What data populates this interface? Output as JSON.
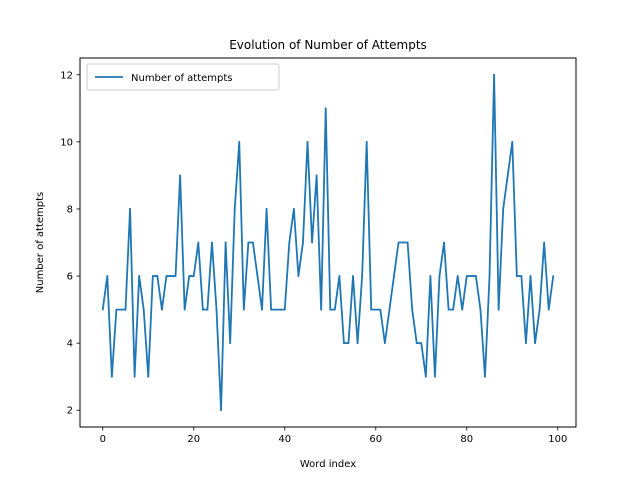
{
  "chart_data": {
    "type": "line",
    "title": "Evolution of Number of Attempts",
    "xlabel": "Word index",
    "ylabel": "Number of attempts",
    "xlim": [
      -5,
      104
    ],
    "ylim": [
      1.5,
      12.5
    ],
    "xticks": [
      0,
      20,
      40,
      60,
      80,
      100
    ],
    "yticks": [
      2,
      4,
      6,
      8,
      10,
      12
    ],
    "grid": false,
    "legend": "top-left",
    "series": [
      {
        "name": "Number of attempts",
        "color": "#1f77b4",
        "x": [
          0,
          1,
          2,
          3,
          4,
          5,
          6,
          7,
          8,
          9,
          10,
          11,
          12,
          13,
          14,
          15,
          16,
          17,
          18,
          19,
          20,
          21,
          22,
          23,
          24,
          25,
          26,
          27,
          28,
          29,
          30,
          31,
          32,
          33,
          34,
          35,
          36,
          37,
          38,
          39,
          40,
          41,
          42,
          43,
          44,
          45,
          46,
          47,
          48,
          49,
          50,
          51,
          52,
          53,
          54,
          55,
          56,
          57,
          58,
          59,
          60,
          61,
          62,
          63,
          64,
          65,
          66,
          67,
          68,
          69,
          70,
          71,
          72,
          73,
          74,
          75,
          76,
          77,
          78,
          79,
          80,
          81,
          82,
          83,
          84,
          85,
          86,
          87,
          88,
          89,
          90,
          91,
          92,
          93,
          94,
          95,
          96,
          97,
          98,
          99
        ],
        "values": [
          5,
          6,
          3,
          5,
          5,
          5,
          8,
          3,
          6,
          5,
          3,
          6,
          6,
          5,
          6,
          6,
          6,
          9,
          5,
          6,
          6,
          7,
          5,
          5,
          7,
          5,
          2,
          7,
          4,
          8,
          10,
          5,
          7,
          7,
          6,
          5,
          8,
          5,
          5,
          5,
          5,
          7,
          8,
          6,
          7,
          10,
          7,
          9,
          5,
          11,
          5,
          5,
          6,
          4,
          4,
          6,
          4,
          6,
          10,
          5,
          5,
          5,
          4,
          5,
          6,
          7,
          7,
          7,
          5,
          4,
          4,
          3,
          6,
          3,
          6,
          7,
          5,
          5,
          6,
          5,
          6,
          6,
          6,
          5,
          3,
          6,
          12,
          5,
          8,
          9,
          10,
          6,
          6,
          4,
          6,
          4,
          5,
          7,
          5,
          6
        ]
      }
    ]
  }
}
